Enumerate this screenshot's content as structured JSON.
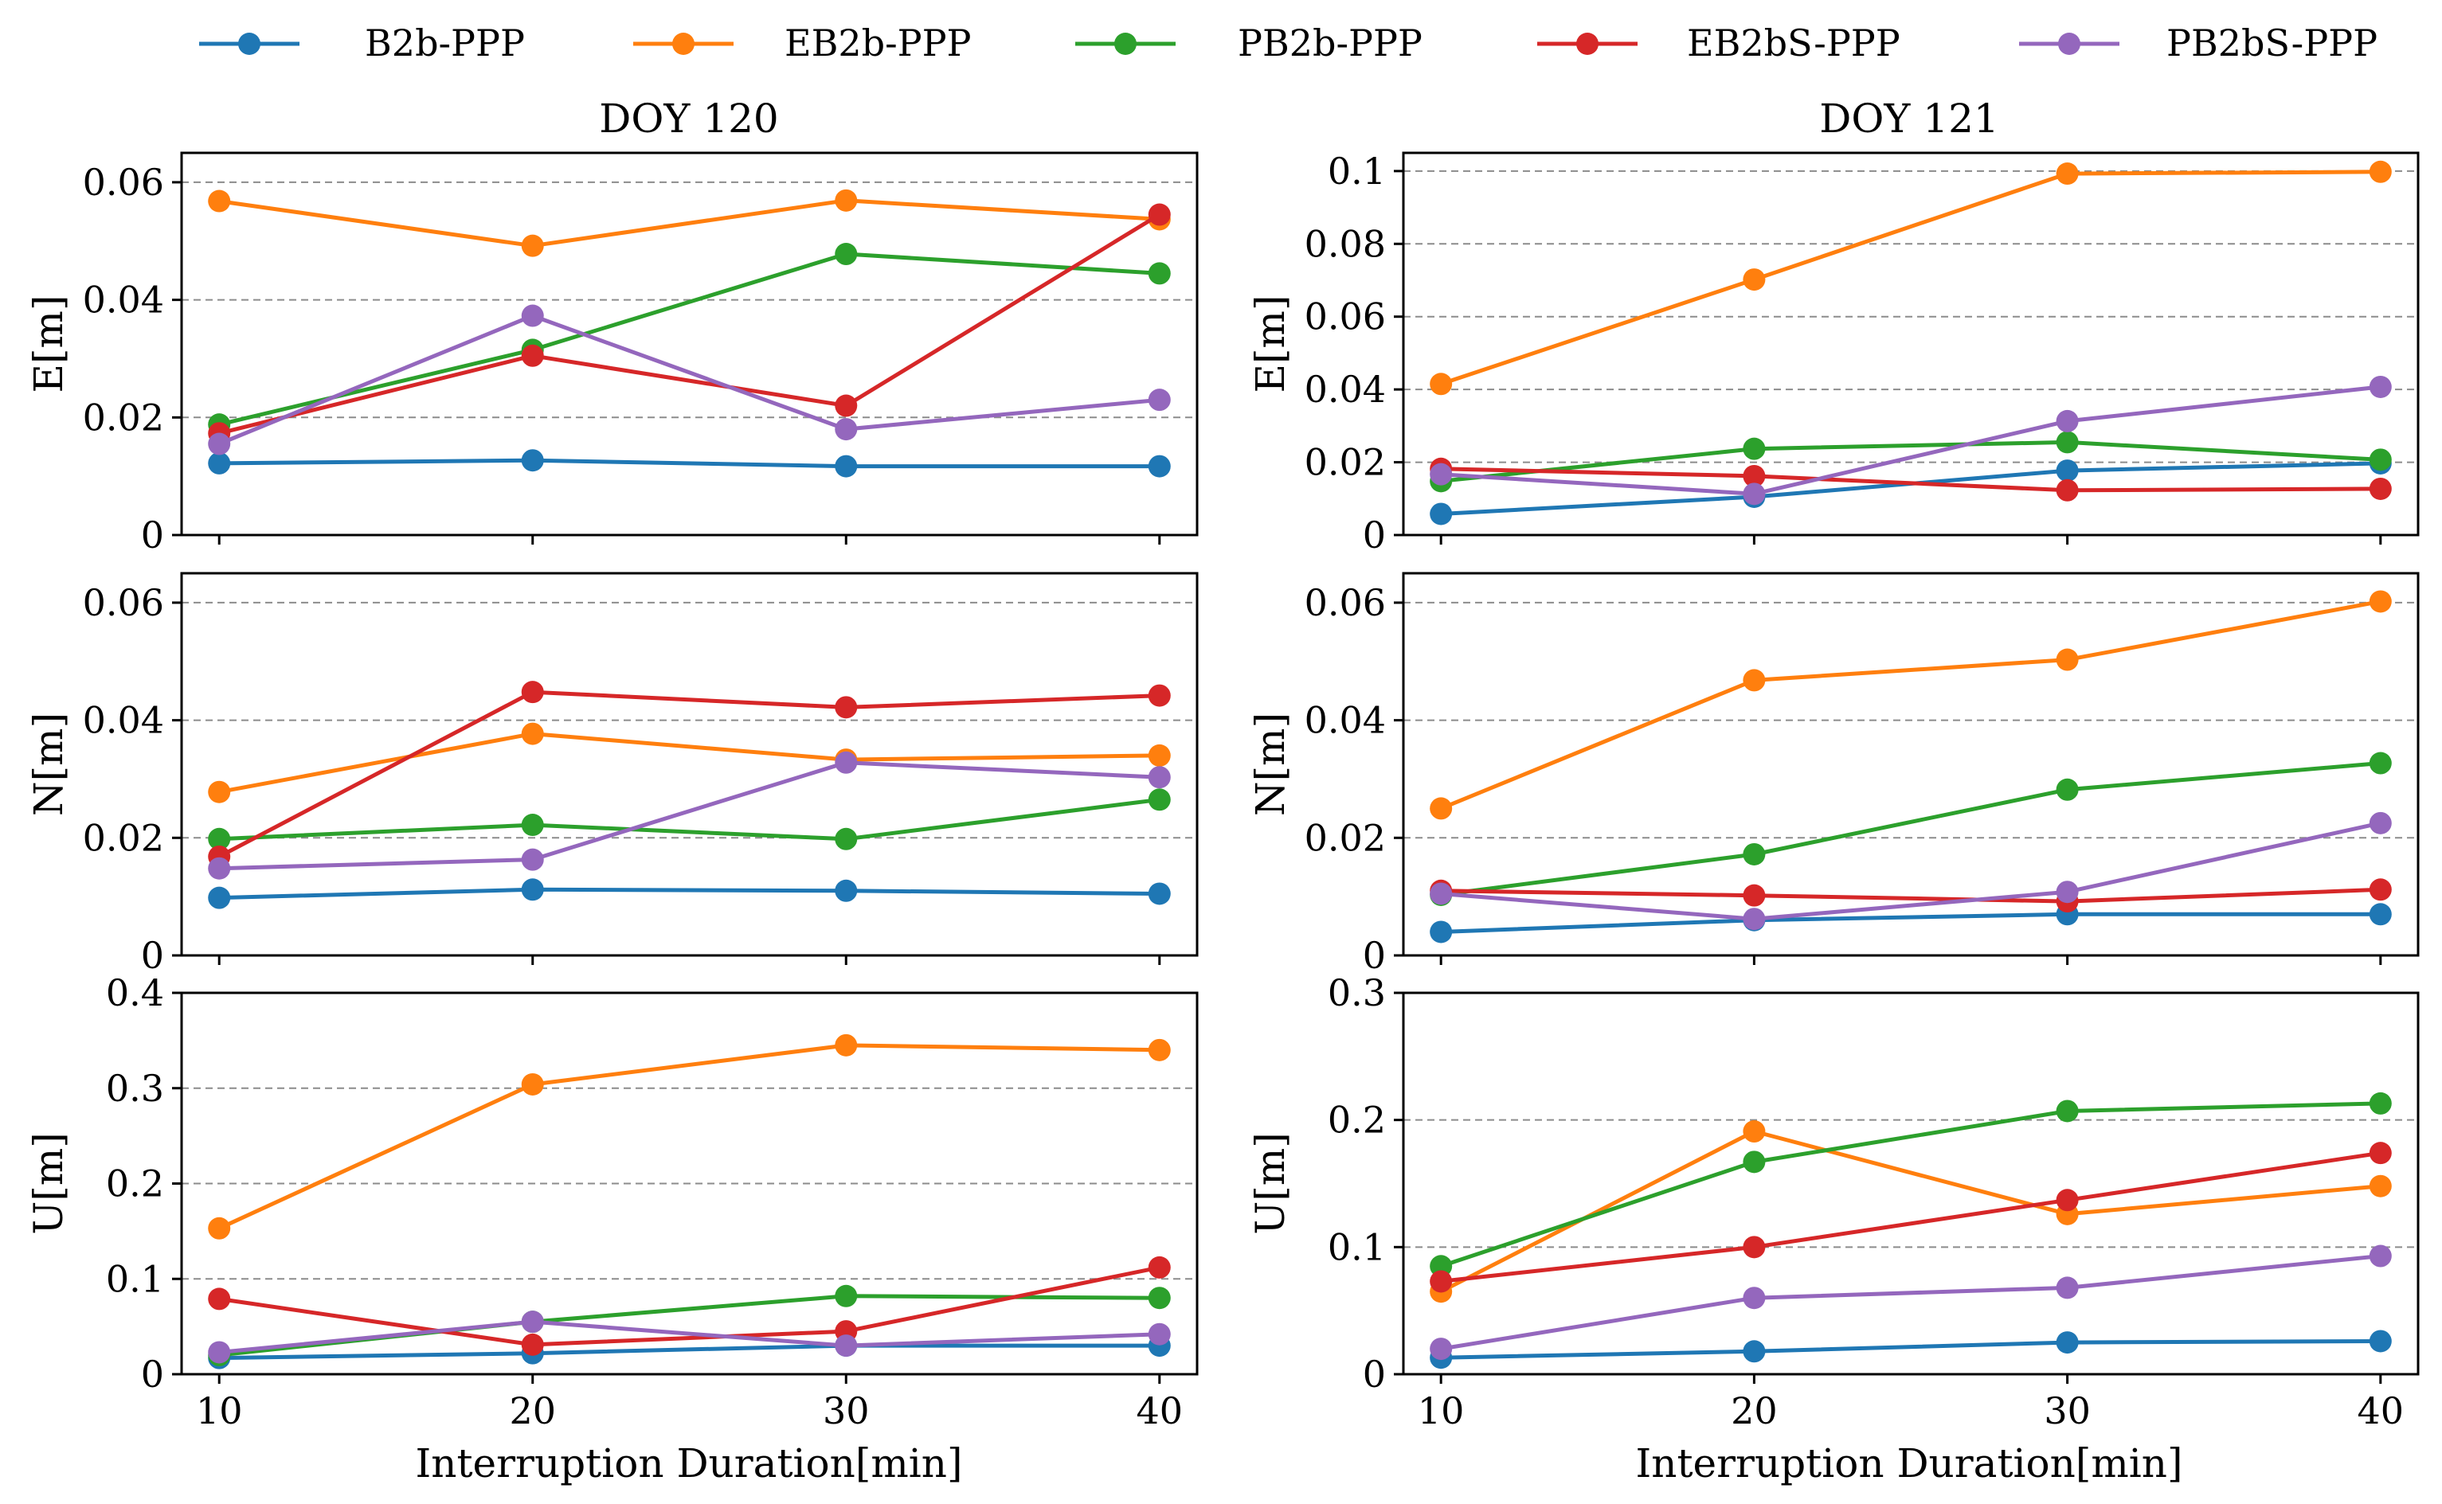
{
  "chart_data": {
    "type": "line",
    "legend": {
      "placement": "top",
      "entries": [
        {
          "name": "B2b-PPP",
          "color": "#1f77b4"
        },
        {
          "name": "EB2b-PPP",
          "color": "#ff7f0e"
        },
        {
          "name": "PB2b-PPP",
          "color": "#2ca02c"
        },
        {
          "name": "EB2bS-PPP",
          "color": "#d62728"
        },
        {
          "name": "PB2bS-PPP",
          "color": "#9467bd"
        }
      ]
    },
    "x": [
      10,
      20,
      30,
      40
    ],
    "x_ticks": [
      "10",
      "20",
      "30",
      "40"
    ],
    "xlabel": "Interruption Duration[min]",
    "xlim": [
      8.8,
      41.2
    ],
    "columns": [
      {
        "title": "DOY 120"
      },
      {
        "title": "DOY 121"
      }
    ],
    "panels": [
      {
        "col": 0,
        "row": 0,
        "ylabel": "E[m]",
        "ylim": [
          0,
          0.065
        ],
        "yticks": [
          0,
          0.02,
          0.04,
          0.06
        ],
        "ytick_labels": [
          "0",
          "0.02",
          "0.04",
          "0.06"
        ],
        "series": [
          {
            "name": "B2b-PPP",
            "values": [
              0.0122,
              0.0127,
              0.0117,
              0.0117
            ]
          },
          {
            "name": "EB2b-PPP",
            "values": [
              0.0568,
              0.0492,
              0.0569,
              0.0537
            ]
          },
          {
            "name": "PB2b-PPP",
            "values": [
              0.0188,
              0.0315,
              0.0478,
              0.0445
            ]
          },
          {
            "name": "EB2bS-PPP",
            "values": [
              0.0173,
              0.0305,
              0.022,
              0.0545
            ]
          },
          {
            "name": "PB2bS-PPP",
            "values": [
              0.0155,
              0.0373,
              0.018,
              0.023
            ]
          }
        ]
      },
      {
        "col": 0,
        "row": 1,
        "ylabel": "N[m]",
        "ylim": [
          0,
          0.065
        ],
        "yticks": [
          0,
          0.02,
          0.04,
          0.06
        ],
        "ytick_labels": [
          "0",
          "0.02",
          "0.04",
          "0.06"
        ],
        "series": [
          {
            "name": "B2b-PPP",
            "values": [
              0.0098,
              0.0112,
              0.011,
              0.0105
            ]
          },
          {
            "name": "EB2b-PPP",
            "values": [
              0.0278,
              0.0377,
              0.0333,
              0.034
            ]
          },
          {
            "name": "PB2b-PPP",
            "values": [
              0.0198,
              0.0222,
              0.0198,
              0.0265
            ]
          },
          {
            "name": "EB2bS-PPP",
            "values": [
              0.0168,
              0.0448,
              0.0422,
              0.0442
            ]
          },
          {
            "name": "PB2bS-PPP",
            "values": [
              0.0148,
              0.0163,
              0.0328,
              0.0303
            ]
          }
        ]
      },
      {
        "col": 0,
        "row": 2,
        "ylabel": "U[m]",
        "ylim": [
          0,
          0.4
        ],
        "yticks": [
          0,
          0.1,
          0.2,
          0.3,
          0.4
        ],
        "ytick_labels": [
          "0",
          "0.1",
          "0.2",
          "0.3",
          "0.4"
        ],
        "series": [
          {
            "name": "B2b-PPP",
            "values": [
              0.017,
              0.022,
              0.03,
              0.03
            ]
          },
          {
            "name": "EB2b-PPP",
            "values": [
              0.153,
              0.304,
              0.345,
              0.34
            ]
          },
          {
            "name": "PB2b-PPP",
            "values": [
              0.02,
              0.055,
              0.082,
              0.08
            ]
          },
          {
            "name": "EB2bS-PPP",
            "values": [
              0.079,
              0.031,
              0.045,
              0.112
            ]
          },
          {
            "name": "PB2bS-PPP",
            "values": [
              0.023,
              0.055,
              0.03,
              0.042
            ]
          }
        ]
      },
      {
        "col": 1,
        "row": 0,
        "ylabel": "E[m]",
        "ylim": [
          0,
          0.105
        ],
        "yticks": [
          0,
          0.02,
          0.04,
          0.06,
          0.08,
          0.1
        ],
        "ytick_labels": [
          "0",
          "0.02",
          "0.04",
          "0.06",
          "0.08",
          "0.1"
        ],
        "series": [
          {
            "name": "B2b-PPP",
            "values": [
              0.0058,
              0.0105,
              0.0177,
              0.0197
            ]
          },
          {
            "name": "EB2b-PPP",
            "values": [
              0.0415,
              0.0702,
              0.0993,
              0.0998
            ]
          },
          {
            "name": "PB2b-PPP",
            "values": [
              0.0148,
              0.0237,
              0.0255,
              0.0207
            ]
          },
          {
            "name": "EB2bS-PPP",
            "values": [
              0.0182,
              0.0162,
              0.0123,
              0.0127
            ]
          },
          {
            "name": "PB2bS-PPP",
            "values": [
              0.0167,
              0.0113,
              0.0313,
              0.0407
            ]
          }
        ]
      },
      {
        "col": 1,
        "row": 1,
        "ylabel": "N[m]",
        "ylim": [
          0,
          0.065
        ],
        "yticks": [
          0,
          0.02,
          0.04,
          0.06
        ],
        "ytick_labels": [
          "0",
          "0.02",
          "0.04",
          "0.06"
        ],
        "series": [
          {
            "name": "B2b-PPP",
            "values": [
              0.004,
              0.006,
              0.007,
              0.007
            ]
          },
          {
            "name": "EB2b-PPP",
            "values": [
              0.025,
              0.0468,
              0.0503,
              0.0602
            ]
          },
          {
            "name": "PB2b-PPP",
            "values": [
              0.0103,
              0.0172,
              0.0282,
              0.0327
            ]
          },
          {
            "name": "EB2bS-PPP",
            "values": [
              0.011,
              0.0102,
              0.0092,
              0.0112
            ]
          },
          {
            "name": "PB2bS-PPP",
            "values": [
              0.0105,
              0.0062,
              0.0108,
              0.0225
            ]
          }
        ]
      },
      {
        "col": 1,
        "row": 2,
        "ylabel": "U[m]",
        "ylim": [
          0,
          0.3
        ],
        "yticks": [
          0,
          0.1,
          0.2,
          0.3
        ],
        "ytick_labels": [
          "0",
          "0.1",
          "0.2",
          "0.3"
        ],
        "series": [
          {
            "name": "B2b-PPP",
            "values": [
              0.013,
              0.018,
              0.025,
              0.026
            ]
          },
          {
            "name": "EB2b-PPP",
            "values": [
              0.065,
              0.191,
              0.126,
              0.148
            ]
          },
          {
            "name": "PB2b-PPP",
            "values": [
              0.085,
              0.167,
              0.207,
              0.213
            ]
          },
          {
            "name": "EB2bS-PPP",
            "values": [
              0.073,
              0.1,
              0.137,
              0.174
            ]
          },
          {
            "name": "PB2bS-PPP",
            "values": [
              0.02,
              0.06,
              0.068,
              0.093
            ]
          }
        ]
      }
    ]
  }
}
